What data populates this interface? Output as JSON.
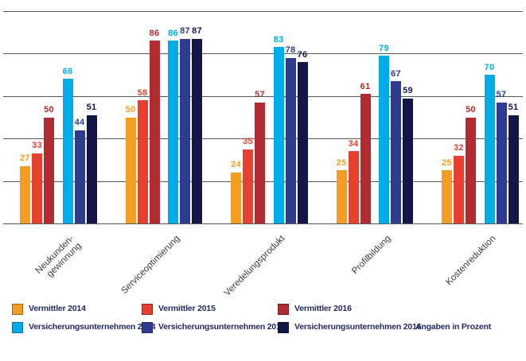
{
  "chart_data": {
    "type": "bar",
    "title": "",
    "categories": [
      "Neukundengewinnung",
      "Serviceoptimierung",
      "Veredelungsprodukt",
      "Profilbildung",
      "Kostenreduktion"
    ],
    "category_display_lines": [
      [
        "Neukunden-",
        "gewinnung"
      ],
      [
        "Serviceoptimierung"
      ],
      [
        "Veredelungsprodukt"
      ],
      [
        "Profilbildung"
      ],
      [
        "Kostenreduktion"
      ]
    ],
    "series": [
      {
        "name": "Vermittler 2014",
        "color": "#F59C23",
        "values": [
          27,
          50,
          24,
          25,
          25
        ]
      },
      {
        "name": "Vermittler 2015",
        "color": "#E8402F",
        "values": [
          33,
          58,
          35,
          34,
          32
        ]
      },
      {
        "name": "Vermittler 2016",
        "color": "#B12B30",
        "values": [
          50,
          86,
          57,
          61,
          50
        ]
      },
      {
        "name": "Versicherungsunternehmen 2014",
        "color": "#00ACE9",
        "values": [
          68,
          86,
          83,
          79,
          70
        ]
      },
      {
        "name": "Versicherungsunternehmen 2015",
        "color": "#2E3B8E",
        "values": [
          44,
          87,
          78,
          67,
          57
        ]
      },
      {
        "name": "Versicherungsunternehmen 2016",
        "color": "#121748",
        "values": [
          51,
          87,
          76,
          59,
          51
        ]
      }
    ],
    "ylim": [
      0,
      100
    ],
    "ytick_step": 20,
    "grid": true,
    "value_labels": true,
    "legend_position": "bottom",
    "note": "Angaben in Prozent"
  },
  "style": {
    "background": "#FFFFFF",
    "gridline_color": "#58585A",
    "category_label_color": "#3A3A39",
    "legend_text_color": "#232A5E"
  }
}
